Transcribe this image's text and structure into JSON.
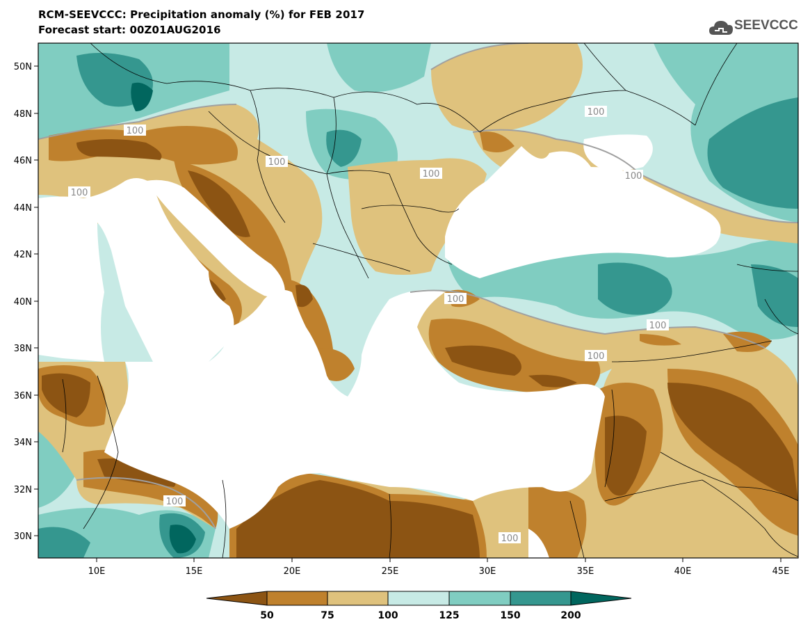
{
  "header": {
    "title": "RCM-SEEVCCC: Precipitation anomaly (%) for FEB 2017",
    "subtitle": "Forecast start: 00Z01AUG2016",
    "logo_text": "SEEVCCC"
  },
  "axes": {
    "lat_labels": [
      "50N",
      "48N",
      "46N",
      "44N",
      "42N",
      "40N",
      "38N",
      "36N",
      "34N",
      "32N",
      "30N"
    ],
    "lon_labels": [
      "10E",
      "15E",
      "20E",
      "25E",
      "30E",
      "35E",
      "40E",
      "45E"
    ]
  },
  "contour_labels": [
    "100",
    "100",
    "100",
    "100",
    "100",
    "100",
    "100",
    "100",
    "100",
    "100",
    "100"
  ],
  "legend": {
    "labels": [
      "50",
      "75",
      "100",
      "125",
      "150",
      "200"
    ],
    "colors": {
      "below_50": "#8c5413",
      "50_75": "#bf812d",
      "75_100": "#dfc27d",
      "100_125": "#c7eae5",
      "125_150": "#80cdc1",
      "150_200": "#35978f",
      "above_200": "#01665e"
    }
  },
  "map_colors": {
    "sea": "#ffffff",
    "border": "#000000",
    "contour_100": "#a0a0a0"
  }
}
